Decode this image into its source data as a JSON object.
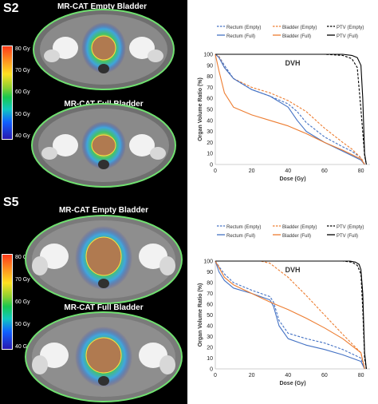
{
  "figure": {
    "panels": [
      {
        "case": "S2",
        "scan_titles": [
          "MR-CAT Empty Bladder",
          "MR-CAT Full Bladder"
        ],
        "colorbar_labels": [
          "80 Gy",
          "70 Gy",
          "60 Gy",
          "50 Gy",
          "40 Gy"
        ],
        "legend": [
          "Rectum (Empty)",
          "Bladder (Empty)",
          "PTV (Empty)",
          "Rectum (Full)",
          "Bladder (Full)",
          "PTV (Full)"
        ]
      },
      {
        "case": "S5",
        "scan_titles": [
          "MR-CAT Empty Bladder",
          "MR-CAT Full Bladder"
        ],
        "colorbar_labels": [
          "80 Gy",
          "70 Gy",
          "60 Gy",
          "50 Gy",
          "40 Gy"
        ],
        "legend": [
          "Rectum (Empty)",
          "Bladder (Empty)",
          "PTV (Empty)",
          "Rectum (Full)",
          "Bladder (Full)",
          "PTV (Full)"
        ]
      }
    ]
  },
  "colors": {
    "rectum": "#4472c4",
    "bladder": "#ed7d31",
    "ptv": "#000000"
  },
  "chart_data": [
    {
      "type": "line",
      "title": "DVH",
      "xlabel": "Dose (Gy)",
      "ylabel": "Organ Volume Ratio (%)",
      "xlim": [
        0,
        85
      ],
      "ylim": [
        0,
        100
      ],
      "xticks": [
        0,
        20,
        40,
        60,
        80
      ],
      "yticks": [
        0,
        10,
        20,
        30,
        40,
        50,
        60,
        70,
        80,
        90,
        100
      ],
      "grid": false,
      "legend_position": "top",
      "series": [
        {
          "name": "Rectum (Empty)",
          "organ": "rectum",
          "dashed": true,
          "x": [
            0,
            2,
            5,
            10,
            20,
            30,
            40,
            45,
            50,
            60,
            70,
            75,
            80,
            82
          ],
          "y": [
            100,
            98,
            90,
            78,
            68,
            62,
            55,
            48,
            38,
            25,
            16,
            12,
            6,
            0
          ]
        },
        {
          "name": "Bladder (Empty)",
          "organ": "bladder",
          "dashed": true,
          "x": [
            0,
            2,
            5,
            10,
            20,
            30,
            40,
            50,
            60,
            70,
            75,
            80,
            82
          ],
          "y": [
            100,
            98,
            88,
            78,
            70,
            65,
            58,
            48,
            33,
            20,
            14,
            6,
            0
          ]
        },
        {
          "name": "PTV (Empty)",
          "organ": "ptv",
          "dashed": true,
          "x": [
            0,
            60,
            70,
            75,
            78,
            80,
            82,
            83
          ],
          "y": [
            100,
            100,
            99,
            96,
            88,
            50,
            8,
            0
          ]
        },
        {
          "name": "Rectum (Full)",
          "organ": "rectum",
          "dashed": false,
          "x": [
            0,
            2,
            5,
            10,
            20,
            30,
            40,
            45,
            50,
            60,
            70,
            80,
            82
          ],
          "y": [
            100,
            97,
            88,
            78,
            68,
            62,
            52,
            40,
            30,
            20,
            12,
            4,
            0
          ]
        },
        {
          "name": "Bladder (Full)",
          "organ": "bladder",
          "dashed": false,
          "x": [
            0,
            2,
            5,
            10,
            20,
            30,
            40,
            50,
            60,
            70,
            80,
            82
          ],
          "y": [
            100,
            85,
            65,
            52,
            45,
            40,
            35,
            28,
            20,
            13,
            5,
            0
          ]
        },
        {
          "name": "PTV (Full)",
          "organ": "ptv",
          "dashed": false,
          "x": [
            0,
            70,
            75,
            78,
            80,
            81,
            82,
            83
          ],
          "y": [
            100,
            100,
            99,
            97,
            90,
            60,
            10,
            0
          ]
        }
      ]
    },
    {
      "type": "line",
      "title": "DVH",
      "xlabel": "Dose (Gy)",
      "ylabel": "Organ Volume Ratio (%)",
      "xlim": [
        0,
        85
      ],
      "ylim": [
        0,
        100
      ],
      "xticks": [
        0,
        20,
        40,
        60,
        80
      ],
      "yticks": [
        0,
        10,
        20,
        30,
        40,
        50,
        60,
        70,
        80,
        90,
        100
      ],
      "grid": false,
      "legend_position": "top",
      "series": [
        {
          "name": "Rectum (Empty)",
          "organ": "rectum",
          "dashed": true,
          "x": [
            0,
            2,
            5,
            10,
            20,
            30,
            32,
            35,
            40,
            50,
            60,
            70,
            80,
            82
          ],
          "y": [
            100,
            95,
            88,
            80,
            73,
            67,
            62,
            45,
            33,
            28,
            24,
            18,
            10,
            0
          ]
        },
        {
          "name": "Bladder (Empty)",
          "organ": "bladder",
          "dashed": true,
          "x": [
            0,
            5,
            15,
            25,
            30,
            40,
            50,
            60,
            70,
            80,
            82
          ],
          "y": [
            100,
            100,
            100,
            100,
            98,
            85,
            68,
            50,
            32,
            15,
            0
          ]
        },
        {
          "name": "PTV (Empty)",
          "organ": "ptv",
          "dashed": true,
          "x": [
            0,
            70,
            75,
            78,
            80,
            81,
            82,
            83
          ],
          "y": [
            100,
            100,
            99,
            96,
            88,
            55,
            10,
            0
          ]
        },
        {
          "name": "Rectum (Full)",
          "organ": "rectum",
          "dashed": false,
          "x": [
            0,
            2,
            5,
            10,
            20,
            30,
            32,
            35,
            40,
            50,
            60,
            70,
            80,
            82
          ],
          "y": [
            100,
            90,
            82,
            75,
            70,
            64,
            58,
            40,
            28,
            22,
            18,
            13,
            7,
            0
          ]
        },
        {
          "name": "Bladder (Full)",
          "organ": "bladder",
          "dashed": false,
          "x": [
            0,
            5,
            10,
            20,
            30,
            40,
            50,
            60,
            70,
            80,
            82
          ],
          "y": [
            100,
            85,
            78,
            70,
            62,
            55,
            47,
            38,
            28,
            15,
            0
          ]
        },
        {
          "name": "PTV (Full)",
          "organ": "ptv",
          "dashed": false,
          "x": [
            0,
            74,
            77,
            79,
            80,
            81,
            82,
            83
          ],
          "y": [
            100,
            100,
            99,
            97,
            92,
            70,
            15,
            0
          ]
        }
      ]
    }
  ]
}
